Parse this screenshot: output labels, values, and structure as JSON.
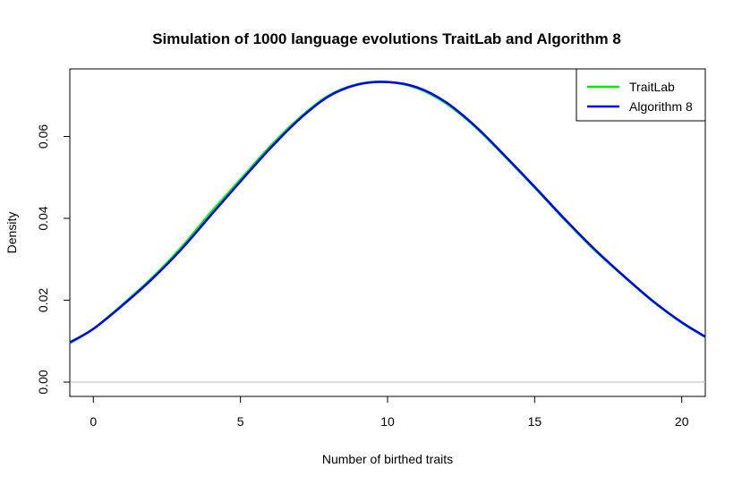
{
  "chart_data": {
    "type": "line",
    "title": "Simulation of 1000 language evolutions TraitLab and Algorithm 8",
    "xlabel": "Number of birthed traits",
    "ylabel": "Density",
    "xlim": [
      -0.8,
      20.8
    ],
    "ylim": [
      -0.0035,
      0.0765
    ],
    "x_ticks": [
      0,
      5,
      10,
      15,
      20
    ],
    "y_ticks": [
      0.0,
      0.02,
      0.04,
      0.06
    ],
    "y_tick_labels": [
      "0.00",
      "0.02",
      "0.04",
      "0.06"
    ],
    "grid": false,
    "zero_line": true,
    "legend_position": "top-right",
    "series": [
      {
        "name": "TraitLab",
        "color": "#00ee00",
        "x": [
          -0.8,
          0,
          1,
          2,
          3,
          4,
          5,
          6,
          7,
          8,
          9,
          10,
          11,
          12,
          13,
          14,
          15,
          16,
          17,
          18,
          19,
          20,
          20.8
        ],
        "y": [
          0.0095,
          0.013,
          0.019,
          0.0255,
          0.033,
          0.0415,
          0.0495,
          0.0575,
          0.0645,
          0.07,
          0.0728,
          0.0733,
          0.0718,
          0.068,
          0.0622,
          0.055,
          0.0475,
          0.0398,
          0.0325,
          0.026,
          0.0198,
          0.0145,
          0.011
        ]
      },
      {
        "name": "Algorithm 8",
        "color": "#0000ee",
        "x": [
          -0.8,
          0,
          1,
          2,
          3,
          4,
          5,
          6,
          7,
          8,
          9,
          10,
          11,
          12,
          13,
          14,
          15,
          16,
          17,
          18,
          19,
          20,
          20.8
        ],
        "y": [
          0.0097,
          0.013,
          0.0188,
          0.0252,
          0.0325,
          0.0408,
          0.049,
          0.057,
          0.0642,
          0.0698,
          0.0727,
          0.0733,
          0.072,
          0.0683,
          0.0624,
          0.0552,
          0.0477,
          0.04,
          0.0327,
          0.0261,
          0.0199,
          0.0146,
          0.0111
        ]
      }
    ]
  }
}
